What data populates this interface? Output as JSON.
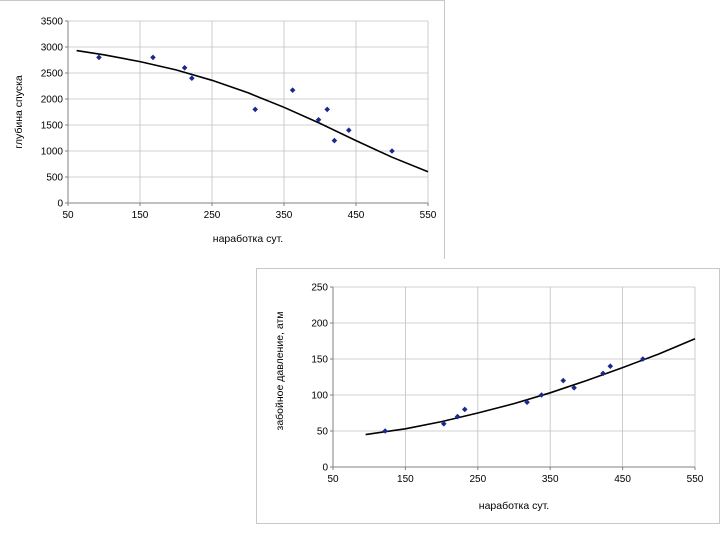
{
  "chart_data": [
    {
      "type": "scatter",
      "xlabel": "наработка сут.",
      "ylabel": "глубина спуска",
      "xlim": [
        50,
        550
      ],
      "ylim": [
        0,
        3500
      ],
      "xticks": [
        "50",
        "150",
        "250",
        "350",
        "450",
        "550"
      ],
      "yticks": [
        "0",
        "500",
        "1000",
        "1500",
        "2000",
        "2500",
        "3000",
        "3500"
      ],
      "grid": true,
      "points": [
        {
          "x": 93,
          "y": 2800
        },
        {
          "x": 168,
          "y": 2800
        },
        {
          "x": 212,
          "y": 2600
        },
        {
          "x": 222,
          "y": 2400
        },
        {
          "x": 310,
          "y": 1800
        },
        {
          "x": 362,
          "y": 2170
        },
        {
          "x": 398,
          "y": 1600
        },
        {
          "x": 410,
          "y": 1800
        },
        {
          "x": 420,
          "y": 1200
        },
        {
          "x": 440,
          "y": 1400
        },
        {
          "x": 500,
          "y": 1000
        }
      ],
      "trendline": {
        "x": [
          62,
          100,
          150,
          200,
          250,
          300,
          350,
          400,
          450,
          500,
          550
        ],
        "y": [
          2930,
          2850,
          2720,
          2560,
          2360,
          2120,
          1840,
          1530,
          1200,
          880,
          600
        ]
      },
      "colors": {
        "points": "#1a2a8c",
        "line": "#000000",
        "grid": "#c0c0c0"
      }
    },
    {
      "type": "scatter",
      "xlabel": "наработка сут.",
      "ylabel": "забойное давление, атм",
      "xlim": [
        50,
        550
      ],
      "ylim": [
        0,
        250
      ],
      "xticks": [
        "50",
        "150",
        "250",
        "350",
        "450",
        "550"
      ],
      "yticks": [
        "0",
        "50",
        "100",
        "150",
        "200",
        "250"
      ],
      "grid": true,
      "points": [
        {
          "x": 122,
          "y": 50
        },
        {
          "x": 203,
          "y": 60
        },
        {
          "x": 222,
          "y": 70
        },
        {
          "x": 232,
          "y": 80
        },
        {
          "x": 318,
          "y": 90
        },
        {
          "x": 338,
          "y": 100
        },
        {
          "x": 368,
          "y": 120
        },
        {
          "x": 383,
          "y": 110
        },
        {
          "x": 423,
          "y": 130
        },
        {
          "x": 433,
          "y": 140
        },
        {
          "x": 478,
          "y": 150
        }
      ],
      "trendline": {
        "x": [
          95,
          150,
          200,
          250,
          300,
          350,
          400,
          450,
          500,
          550
        ],
        "y": [
          45,
          53,
          63,
          75,
          88,
          103,
          120,
          138,
          157,
          178
        ]
      },
      "colors": {
        "points": "#1a2a8c",
        "line": "#000000",
        "grid": "#c0c0c0"
      }
    }
  ]
}
